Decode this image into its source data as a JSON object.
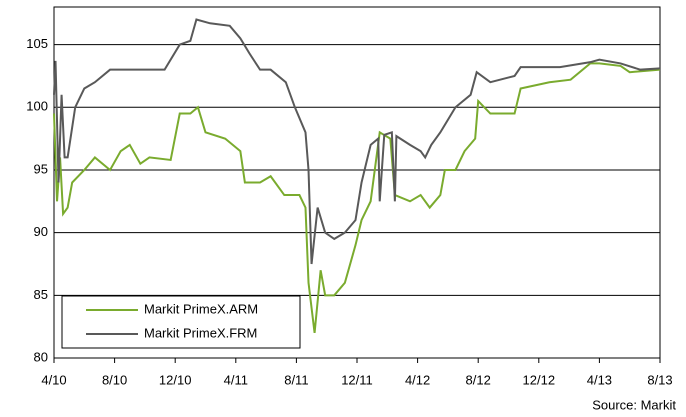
{
  "chart_data": {
    "type": "line",
    "source": "Source: Markit",
    "xlim": [
      0,
      40
    ],
    "xticks": [
      {
        "value": 0,
        "label": "4/10"
      },
      {
        "value": 4,
        "label": "8/10"
      },
      {
        "value": 8,
        "label": "12/10"
      },
      {
        "value": 12,
        "label": "4/11"
      },
      {
        "value": 16,
        "label": "8/11"
      },
      {
        "value": 20,
        "label": "12/11"
      },
      {
        "value": 24,
        "label": "4/12"
      },
      {
        "value": 28,
        "label": "8/12"
      },
      {
        "value": 32,
        "label": "12/12"
      },
      {
        "value": 36,
        "label": "4/13"
      },
      {
        "value": 40,
        "label": "8/13"
      }
    ],
    "ylim": [
      80,
      108
    ],
    "yticks": [
      80,
      85,
      90,
      95,
      100,
      105
    ],
    "grid": true,
    "legend": "lower left",
    "series": [
      {
        "name": "Markit PrimeX.ARM",
        "color": "#7aab2e",
        "x": [
          0,
          0.2,
          0.4,
          0.6,
          0.9,
          1.2,
          2.0,
          2.7,
          3.7,
          4.4,
          5.0,
          5.7,
          6.3,
          7.7,
          8.3,
          9.0,
          9.5,
          10.0,
          11.3,
          12.3,
          12.6,
          13.6,
          14.3,
          15.2,
          16.2,
          16.6,
          16.8,
          17.2,
          17.6,
          17.9,
          18.5,
          19.2,
          19.9,
          20.3,
          20.9,
          21.5,
          22.2,
          22.5,
          23.5,
          24.2,
          24.8,
          25.5,
          25.8,
          26.5,
          27.1,
          27.8,
          28.0,
          28.8,
          30.4,
          30.8,
          32.7,
          34.1,
          35.4,
          36.0,
          37.4,
          38.0,
          40.0
        ],
        "values": [
          99.5,
          92.5,
          96,
          91.5,
          92,
          94,
          95,
          96,
          95,
          96.5,
          97,
          95.5,
          96,
          95.8,
          99.5,
          99.5,
          100,
          98,
          97.5,
          96.5,
          94,
          94,
          94.5,
          93,
          93,
          92,
          86,
          82,
          87,
          85,
          85,
          86,
          89,
          91,
          92.5,
          98,
          97.5,
          93,
          92.5,
          93,
          92,
          93,
          95,
          95,
          96.5,
          97.5,
          100.5,
          99.5,
          99.5,
          101.5,
          102,
          102.2,
          103.5,
          103.5,
          103.3,
          102.8,
          103
        ]
      },
      {
        "name": "Markit PrimeX.FRM",
        "color": "#595959",
        "x": [
          0,
          0.1,
          0.3,
          0.5,
          0.7,
          0.9,
          1.4,
          2.0,
          2.7,
          3.7,
          5.0,
          7.3,
          8.3,
          9.0,
          9.4,
          10.3,
          11.6,
          12.3,
          12.9,
          13.6,
          14.3,
          15.3,
          15.9,
          16.6,
          16.8,
          17.0,
          17.4,
          17.9,
          18.5,
          19.2,
          19.9,
          20.3,
          20.9,
          21.4,
          21.5,
          21.8,
          22.3,
          22.5,
          22.6,
          23.5,
          24.2,
          24.5,
          24.9,
          25.5,
          26.5,
          27.5,
          27.9,
          28.8,
          30.4,
          30.8,
          33.4,
          35.4,
          36.0,
          37.4,
          38.7,
          40.0
        ],
        "values": [
          101,
          103.7,
          94,
          101,
          96,
          96,
          100,
          101.5,
          102,
          103,
          103,
          103,
          105,
          105.3,
          107,
          106.7,
          106.5,
          105.5,
          104.3,
          103,
          103,
          102,
          100,
          98,
          95,
          87.5,
          92,
          90,
          89.5,
          90,
          91,
          94,
          97,
          97.5,
          92.5,
          97.8,
          98,
          92.5,
          97.7,
          97,
          96.5,
          96,
          97,
          98,
          100,
          101,
          102.8,
          102,
          102.5,
          103.2,
          103.2,
          103.6,
          103.8,
          103.5,
          103,
          103.1
        ]
      }
    ]
  }
}
